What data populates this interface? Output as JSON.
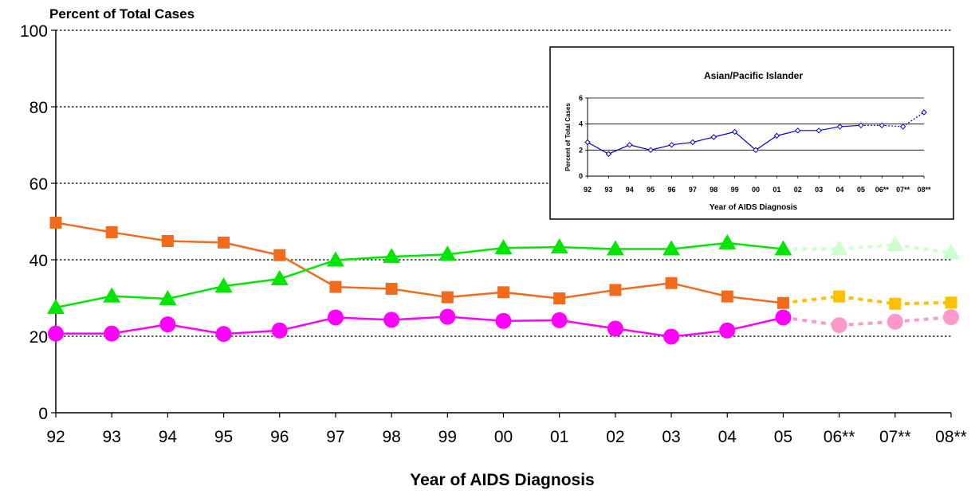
{
  "chart_data": [
    {
      "type": "line",
      "title": "",
      "ylabel": "Percent of Total Cases",
      "xlabel": "Year of AIDS Diagnosis",
      "categories": [
        "92",
        "93",
        "94",
        "95",
        "96",
        "97",
        "98",
        "99",
        "00",
        "01",
        "02",
        "03",
        "04",
        "05",
        "06**",
        "07**",
        "08**"
      ],
      "ylim": [
        0,
        100
      ],
      "yticks": [
        0,
        20,
        40,
        60,
        80,
        100
      ],
      "grid": "horizontal dotted",
      "estimated_from_index": 13,
      "series": [
        {
          "values": [
            49.7,
            47.2,
            44.9,
            44.5,
            41.2,
            32.9,
            32.4,
            30.2,
            31.5,
            29.9,
            32.1,
            33.9,
            30.4,
            28.7,
            30.4,
            28.5,
            28.8
          ],
          "color": "#f26b1d",
          "estimate_color": "#ffc000",
          "marker": "square"
        },
        {
          "values": [
            27.5,
            30.5,
            29.8,
            33.1,
            35.0,
            39.9,
            40.8,
            41.4,
            43.1,
            43.3,
            42.8,
            42.8,
            44.4,
            42.8,
            42.8,
            43.9,
            41.8
          ],
          "color": "#00e600",
          "estimate_color": "#ccffcc",
          "marker": "triangle"
        },
        {
          "values": [
            20.7,
            20.7,
            23.1,
            20.6,
            21.5,
            24.9,
            24.3,
            25.1,
            24.0,
            24.2,
            22.0,
            19.9,
            21.5,
            24.9,
            22.9,
            23.8,
            25.0
          ],
          "color": "#ff00ff",
          "estimate_color": "#ff99cc",
          "marker": "circle"
        }
      ]
    },
    {
      "type": "line",
      "title": "Asian/Pacific Islander",
      "ylabel": "Percent of Total Cases",
      "xlabel": "Year of AIDS Diagnosis",
      "categories": [
        "92",
        "93",
        "94",
        "95",
        "96",
        "97",
        "98",
        "99",
        "00",
        "01",
        "02",
        "03",
        "04",
        "05",
        "06**",
        "07**",
        "08**"
      ],
      "ylim": [
        0,
        6
      ],
      "yticks": [
        0,
        2,
        4,
        6
      ],
      "grid": "horizontal solid",
      "estimated_from_index": 13,
      "series": [
        {
          "values": [
            2.6,
            1.7,
            2.4,
            2.0,
            2.4,
            2.6,
            3.0,
            3.4,
            2.0,
            3.1,
            3.5,
            3.5,
            3.8,
            3.9,
            3.9,
            3.8,
            4.9
          ],
          "color": "#0000cc",
          "marker": "diamond"
        }
      ]
    }
  ]
}
